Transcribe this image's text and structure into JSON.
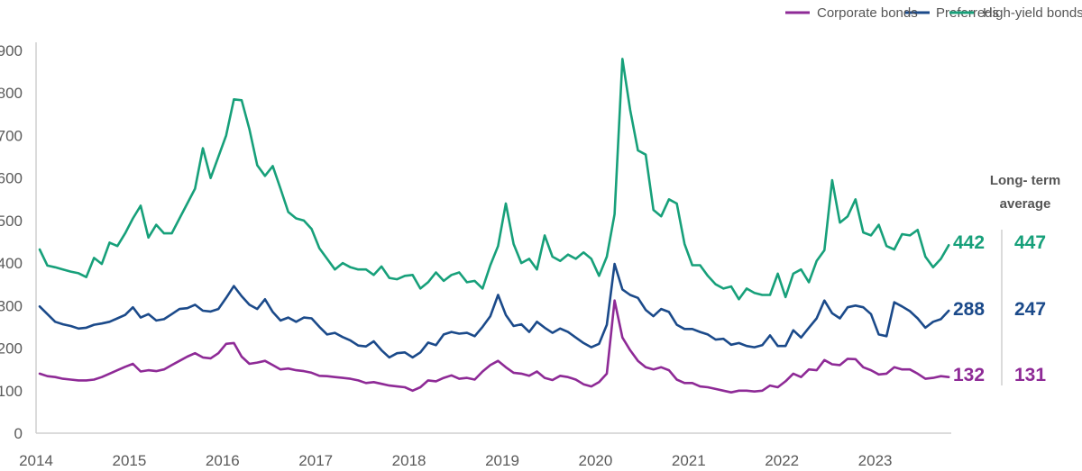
{
  "chart_data": {
    "type": "line",
    "title": "",
    "xlabel": "",
    "ylabel": "",
    "ylim": [
      0,
      900
    ],
    "yticks": [
      "0",
      "100",
      "200",
      "300",
      "400",
      "500",
      "600",
      "700",
      "800",
      "900"
    ],
    "xticks": [
      "2014",
      "2015",
      "2016",
      "2017",
      "2018",
      "2019",
      "2020",
      "2021",
      "2022",
      "2023"
    ],
    "x_start": "2014-01",
    "x_frequency": "monthly",
    "grid": false,
    "legend_position": "top-right",
    "series": [
      {
        "name": "Preferreds",
        "color": "#1b4a8a",
        "values": [
          298,
          280,
          262,
          256,
          252,
          246,
          248,
          255,
          258,
          262,
          270,
          278,
          296,
          272,
          280,
          265,
          268,
          280,
          292,
          294,
          302,
          288,
          286,
          292,
          318,
          346,
          322,
          302,
          292,
          315,
          285,
          265,
          272,
          262,
          272,
          270,
          250,
          232,
          236,
          226,
          218,
          206,
          204,
          216,
          195,
          178,
          188,
          190,
          178,
          190,
          213,
          207,
          232,
          238,
          234,
          236,
          228,
          250,
          275,
          325,
          278,
          252,
          256,
          238,
          262,
          248,
          236,
          246,
          238,
          225,
          212,
          202,
          210,
          255,
          398,
          338,
          325,
          318,
          290,
          275,
          292,
          285,
          255,
          245,
          245,
          238,
          232,
          220,
          222,
          208,
          212,
          205,
          202,
          207,
          230,
          205,
          205,
          242,
          225,
          248,
          270,
          312,
          282,
          270,
          296,
          300,
          296,
          280,
          232,
          228,
          308,
          298,
          287,
          270,
          248,
          262,
          268,
          288
        ],
        "current": "288",
        "long_term_average": "247"
      },
      {
        "name": "Corporate bonds",
        "color": "#8e2a96",
        "values": [
          140,
          134,
          132,
          128,
          126,
          124,
          124,
          126,
          132,
          140,
          148,
          156,
          163,
          145,
          148,
          146,
          150,
          160,
          170,
          180,
          188,
          178,
          176,
          188,
          210,
          212,
          180,
          163,
          166,
          170,
          160,
          150,
          152,
          148,
          146,
          142,
          135,
          134,
          132,
          130,
          128,
          124,
          118,
          120,
          116,
          112,
          110,
          108,
          100,
          108,
          124,
          122,
          130,
          136,
          128,
          130,
          126,
          145,
          160,
          170,
          155,
          142,
          140,
          135,
          145,
          130,
          125,
          135,
          132,
          126,
          115,
          110,
          120,
          140,
          312,
          225,
          195,
          170,
          155,
          150,
          155,
          148,
          126,
          118,
          118,
          110,
          108,
          104,
          100,
          96,
          100,
          100,
          98,
          100,
          112,
          108,
          122,
          140,
          132,
          150,
          148,
          172,
          162,
          160,
          175,
          174,
          155,
          148,
          138,
          140,
          155,
          150,
          150,
          140,
          128,
          130,
          134,
          132
        ],
        "current": "132",
        "long_term_average": "131"
      },
      {
        "name": "High-yield bonds",
        "color": "#17a07a",
        "values": [
          432,
          394,
          390,
          385,
          380,
          376,
          367,
          412,
          398,
          448,
          440,
          470,
          505,
          535,
          460,
          490,
          470,
          470,
          505,
          540,
          575,
          670,
          600,
          650,
          700,
          785,
          783,
          715,
          630,
          605,
          628,
          575,
          520,
          505,
          500,
          480,
          435,
          410,
          385,
          400,
          390,
          385,
          385,
          372,
          392,
          365,
          362,
          370,
          372,
          340,
          355,
          378,
          358,
          372,
          378,
          355,
          358,
          340,
          395,
          440,
          540,
          445,
          400,
          410,
          385,
          465,
          415,
          405,
          420,
          410,
          425,
          410,
          370,
          415,
          515,
          880,
          760,
          665,
          655,
          525,
          510,
          550,
          540,
          445,
          395,
          395,
          370,
          350,
          340,
          345,
          315,
          340,
          330,
          325,
          325,
          375,
          320,
          375,
          385,
          355,
          405,
          430,
          595,
          495,
          510,
          550,
          472,
          465,
          490,
          440,
          432,
          468,
          465,
          478,
          415,
          390,
          410,
          442
        ],
        "current": "442",
        "long_term_average": "447"
      }
    ],
    "average_header": [
      "Long- term",
      "average"
    ]
  }
}
